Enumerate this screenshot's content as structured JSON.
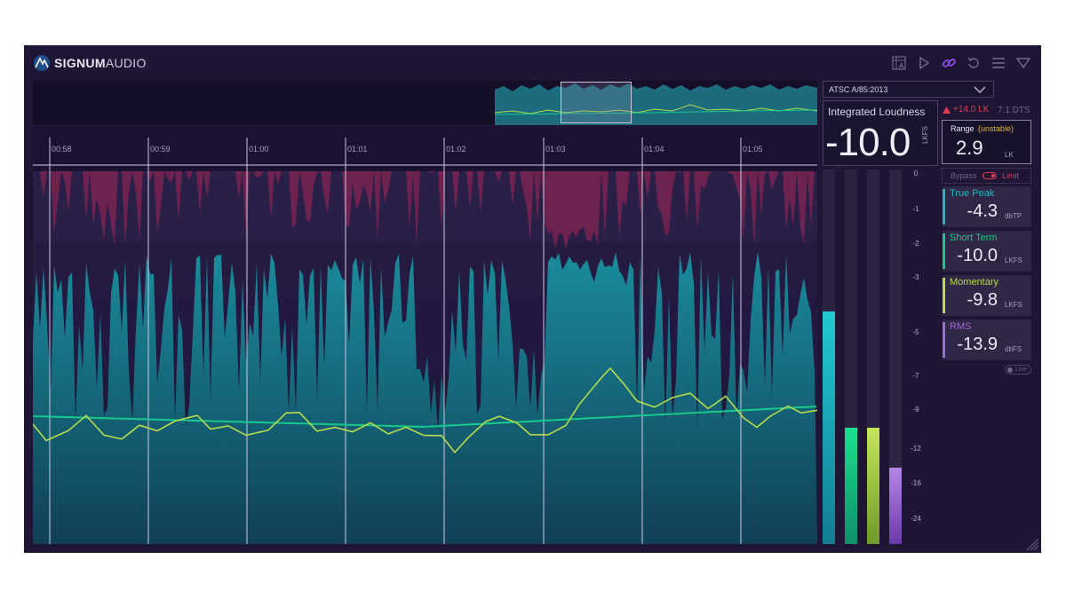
{
  "app": {
    "brand_bold": "SIGNUM",
    "brand_light": "AUDIO"
  },
  "toolbar": {
    "icons": [
      "ruler-text-icon",
      "play-icon",
      "link-icon",
      "reset-icon",
      "menu-icon",
      "collapse-icon"
    ]
  },
  "timeline": {
    "labels": [
      "00:58",
      "00:59",
      "01:00",
      "01:01",
      "01:02",
      "01:03",
      "01:04",
      "01:05"
    ]
  },
  "preset": {
    "label": "ATSC A/85:2013"
  },
  "integrated": {
    "title": "Integrated Loudness",
    "value": "-10.0",
    "unit": "LKFS",
    "delta": "+14.0 LK",
    "channel": "7.1 DTS"
  },
  "range": {
    "label": "Range",
    "status": "(unstable)",
    "value": "2.9",
    "unit": "LK"
  },
  "limiter": {
    "bypass": "Bypass",
    "limit": "Limit"
  },
  "meters": [
    {
      "name": "True Peak",
      "value": "-4.3",
      "unit": "dbTP",
      "color": "#1fb9c4"
    },
    {
      "name": "Short Term",
      "value": "-10.0",
      "unit": "LKFS",
      "color": "#17c98a"
    },
    {
      "name": "Momentary",
      "value": "-9.8",
      "unit": "LKFS",
      "color": "#b9dc4a"
    },
    {
      "name": "RMS",
      "value": "-13.9",
      "unit": "dbFS",
      "color": "#9b6cd1"
    }
  ],
  "live": {
    "label": "Live"
  },
  "scale": [
    "0",
    "-1",
    "-2",
    "-3",
    "-5",
    "-7",
    "-9",
    "-12",
    "-16",
    "-24"
  ],
  "level_meters": {
    "true_peak": 0.62,
    "short_term": 0.31,
    "momentary": 0.31,
    "rms": 0.205
  },
  "colors": {
    "background": "#1f1534",
    "teal": "#1fb9c4",
    "green": "#17c98a",
    "lime": "#b9dc4a",
    "purple": "#9b6cd1",
    "peak_red": "#e23a55",
    "range_yellow": "#e0b43a"
  }
}
